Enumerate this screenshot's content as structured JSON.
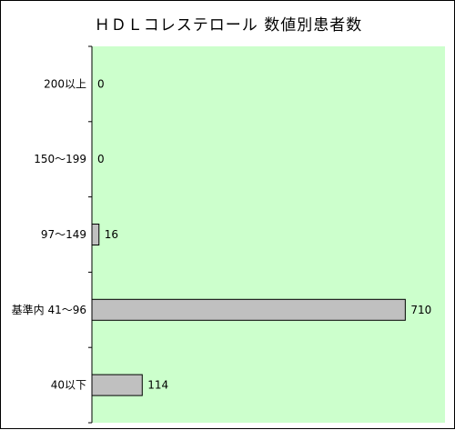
{
  "chart_data": {
    "type": "bar",
    "orientation": "horizontal",
    "title": "ＨＤＬコレステロール 数値別患者数",
    "xlabel": "",
    "ylabel": "",
    "categories": [
      "200以上",
      "150～199",
      "97～149",
      "基準内 41～96",
      "40以下"
    ],
    "values": [
      0,
      0,
      16,
      710,
      114
    ],
    "data_labels": [
      "0",
      "0",
      "16",
      "710",
      "114"
    ],
    "xlim": [
      0,
      800
    ],
    "grid": false,
    "legend": "none",
    "colors": {
      "plot_background": "#ccffcc",
      "bar_fill": "#c0c0c0",
      "bar_stroke": "#000000",
      "axis": "#000000"
    }
  }
}
